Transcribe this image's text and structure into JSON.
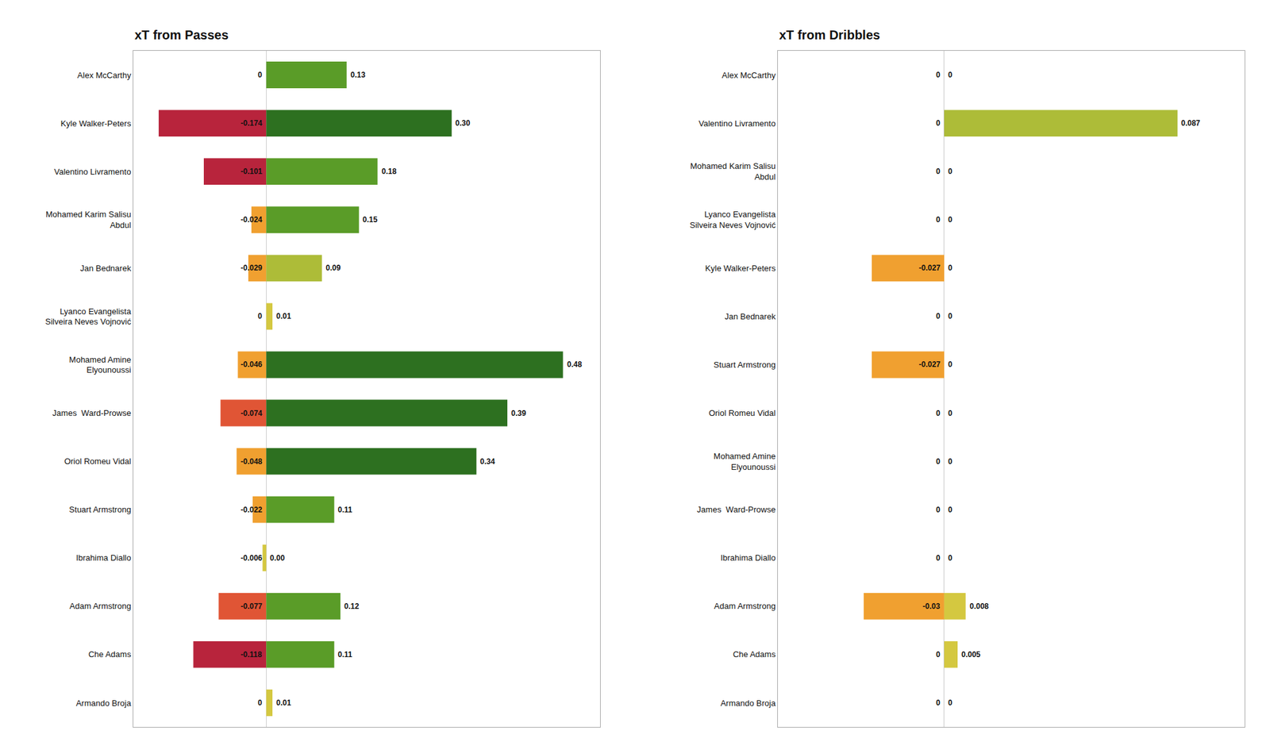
{
  "chart_data": [
    {
      "type": "bar",
      "orientation": "horizontal",
      "title": "xT from Passes",
      "categories": [
        "Alex McCarthy",
        "Kyle Walker-Peters",
        "Valentino Livramento",
        "Mohamed Karim Salisu\nAbdul",
        "Jan Bednarek",
        "Lyanco Evangelista\nSilveira Neves Vojnović",
        "Mohamed Amine\nElyounoussi",
        "James  Ward-Prowse",
        "Oriol Romeu Vidal",
        "Stuart Armstrong",
        "Ibrahima Diallo",
        "Adam Armstrong",
        "Che Adams",
        "Armando Broja"
      ],
      "series": [
        {
          "values": [
            0,
            -0.174,
            -0.101,
            -0.024,
            -0.029,
            0,
            -0.046,
            -0.074,
            -0.048,
            -0.022,
            -0.006,
            -0.077,
            -0.118,
            0
          ],
          "colors": [
            "#D4C840",
            "#B8243C",
            "#B8243C",
            "#F0A030",
            "#F0A030",
            "#D4C840",
            "#F0A030",
            "#E05535",
            "#F0A030",
            "#F0A030",
            "#D4C840",
            "#E05535",
            "#B8243C",
            "#D4C840"
          ]
        },
        {
          "values": [
            0.13,
            0.3,
            0.18,
            0.15,
            0.09,
            0.01,
            0.48,
            0.39,
            0.34,
            0.11,
            0.0,
            0.12,
            0.11,
            0.01
          ],
          "value_labels": [
            "0.13",
            "0.30",
            "0.18",
            "0.15",
            "0.09",
            "0.01",
            "0.48",
            "0.39",
            "0.34",
            "0.11",
            "0.00",
            "0.12",
            "0.11",
            "0.01"
          ],
          "colors": [
            "#5A9C28",
            "#2D7020",
            "#5A9C28",
            "#5A9C28",
            "#ADBC38",
            "#D4C840",
            "#2D7020",
            "#2D7020",
            "#2D7020",
            "#5A9C28",
            "#D4C840",
            "#5A9C28",
            "#5A9C28",
            "#D4C840"
          ]
        }
      ],
      "xlim": [
        -0.215,
        0.54
      ],
      "data_labels": true,
      "grid": false,
      "tick_labels": "y"
    },
    {
      "type": "bar",
      "orientation": "horizontal",
      "title": "xT from Dribbles",
      "categories": [
        "Alex McCarthy",
        "Valentino Livramento",
        "Mohamed Karim Salisu\nAbdul",
        "Lyanco Evangelista\nSilveira Neves Vojnović",
        "Kyle Walker-Peters",
        "Jan Bednarek",
        "Stuart Armstrong",
        "Oriol Romeu Vidal",
        "Mohamed Amine\nElyounoussi",
        "James  Ward-Prowse",
        "Ibrahima Diallo",
        "Adam Armstrong",
        "Che Adams",
        "Armando Broja"
      ],
      "series": [
        {
          "values": [
            0,
            0,
            0,
            0,
            -0.027,
            0,
            -0.027,
            0,
            0,
            0,
            0,
            -0.03,
            0,
            0
          ],
          "colors": [
            "#D4C840",
            "#D4C840",
            "#D4C840",
            "#D4C840",
            "#F0A030",
            "#D4C840",
            "#F0A030",
            "#D4C840",
            "#D4C840",
            "#D4C840",
            "#D4C840",
            "#F0A030",
            "#D4C840",
            "#D4C840"
          ]
        },
        {
          "values": [
            0,
            0.087,
            0,
            0,
            0,
            0,
            0,
            0,
            0,
            0,
            0,
            0.008,
            0.005,
            0
          ],
          "colors": [
            "#D4C840",
            "#ADBC38",
            "#D4C840",
            "#D4C840",
            "#D4C840",
            "#D4C840",
            "#D4C840",
            "#D4C840",
            "#D4C840",
            "#D4C840",
            "#D4C840",
            "#D4C840",
            "#D4C840",
            "#D4C840"
          ]
        }
      ],
      "xlim": [
        -0.062,
        0.112
      ],
      "data_labels": true,
      "grid": false,
      "tick_labels": "y"
    }
  ]
}
